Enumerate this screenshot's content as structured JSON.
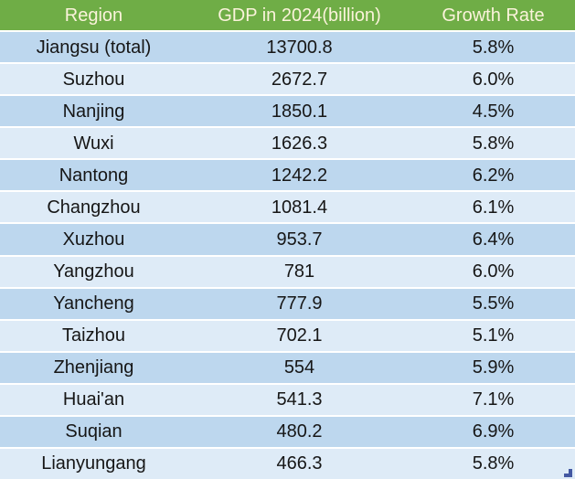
{
  "chart_data": {
    "type": "table",
    "columns": [
      "Region",
      "GDP in 2024(billion)",
      "Growth Rate"
    ],
    "rows": [
      {
        "region": "Jiangsu (total)",
        "gdp": "13700.8",
        "growth_rate": "5.8%"
      },
      {
        "region": "Suzhou",
        "gdp": "2672.7",
        "growth_rate": "6.0%"
      },
      {
        "region": "Nanjing",
        "gdp": "1850.1",
        "growth_rate": "4.5%"
      },
      {
        "region": "Wuxi",
        "gdp": "1626.3",
        "growth_rate": "5.8%"
      },
      {
        "region": "Nantong",
        "gdp": "1242.2",
        "growth_rate": "6.2%"
      },
      {
        "region": "Changzhou",
        "gdp": "1081.4",
        "growth_rate": "6.1%"
      },
      {
        "region": "Xuzhou",
        "gdp": "953.7",
        "growth_rate": "6.4%"
      },
      {
        "region": "Yangzhou",
        "gdp": "781",
        "growth_rate": "6.0%"
      },
      {
        "region": "Yancheng",
        "gdp": "777.9",
        "growth_rate": "5.5%"
      },
      {
        "region": "Taizhou",
        "gdp": "702.1",
        "growth_rate": "5.1%"
      },
      {
        "region": "Zhenjiang",
        "gdp": "554",
        "growth_rate": "5.9%"
      },
      {
        "region": "Huai'an",
        "gdp": "541.3",
        "growth_rate": "7.1%"
      },
      {
        "region": "Suqian",
        "gdp": "480.2",
        "growth_rate": "6.9%"
      },
      {
        "region": "Lianyungang",
        "gdp": "466.3",
        "growth_rate": "5.8%"
      }
    ]
  },
  "icons": {
    "corner_handle": "table-resize-handle-icon"
  },
  "colors": {
    "header_bg": "#6FAD46",
    "header_text": "#FBF3DB",
    "row_odd_bg": "#BDD7EE",
    "row_even_bg": "#DEEBF7",
    "body_text": "#161616",
    "separator": "#FFFFFF",
    "corner_handle": "#4458A2"
  }
}
